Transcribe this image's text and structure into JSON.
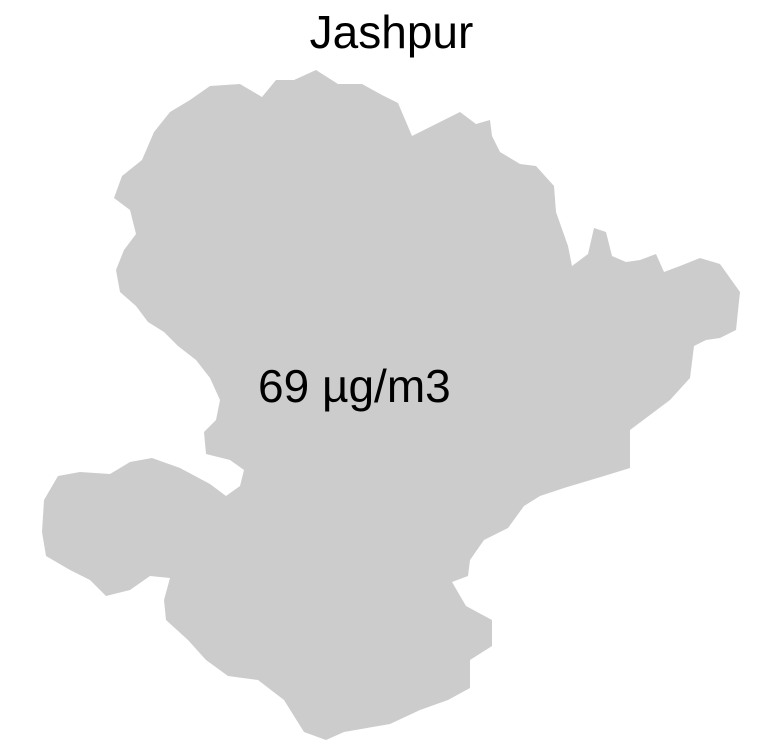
{
  "map": {
    "title": "Jashpur",
    "value_label": "69 µg/m3",
    "region_fill": "#cccccc",
    "text_color": "#000000"
  }
}
